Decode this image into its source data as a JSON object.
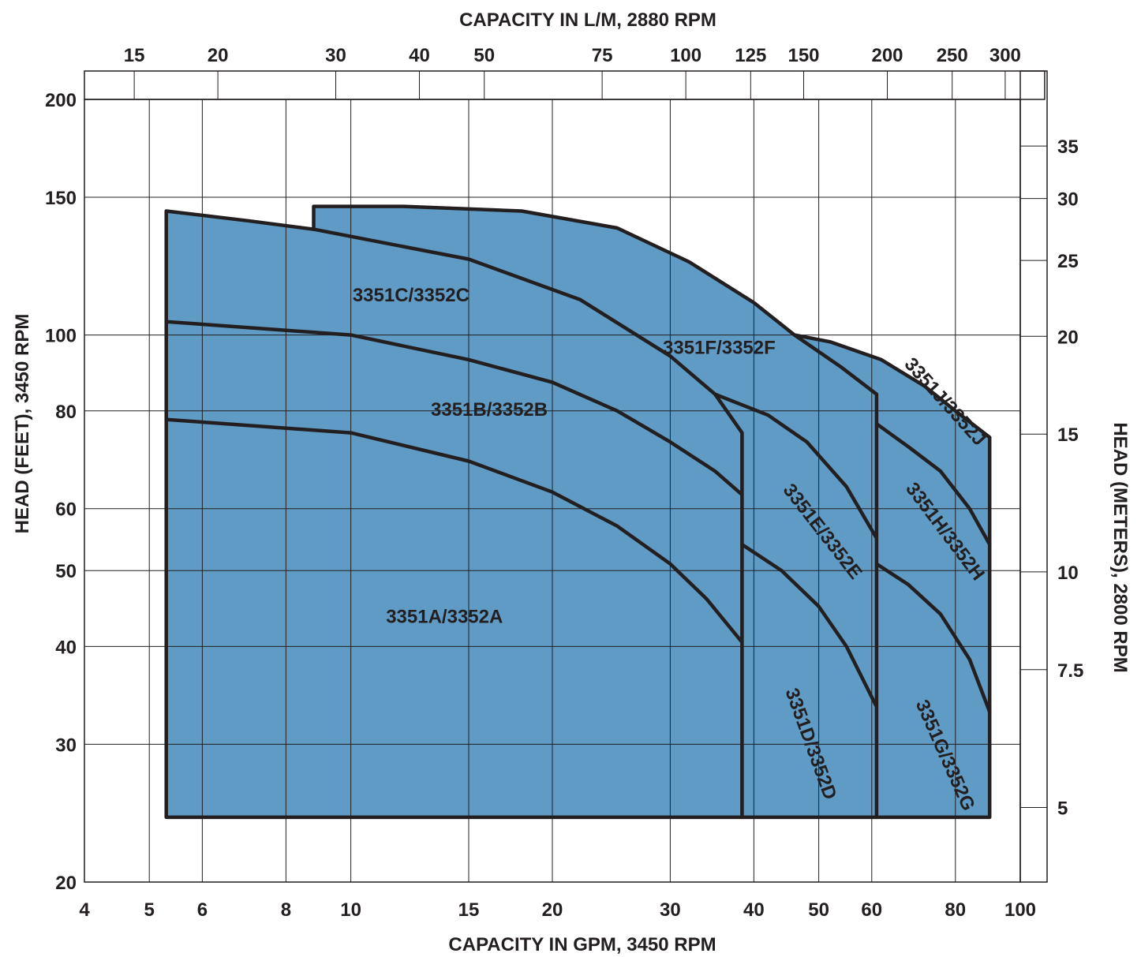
{
  "chart_data": {
    "type": "area",
    "top_axis_title": "CAPACITY IN L/M, 2880 RPM",
    "bottom_axis_title": "CAPACITY IN GPM, 3450 RPM",
    "left_axis_title": "HEAD (FEET), 3450 RPM",
    "right_axis_title": "HEAD (METERS), 2800 RPM",
    "x_scale": "log",
    "y_scale": "log",
    "xlim": [
      4,
      100
    ],
    "ylim": [
      20,
      200
    ],
    "x_ticks": [
      4,
      5,
      6,
      8,
      10,
      15,
      20,
      30,
      40,
      50,
      60,
      80,
      100
    ],
    "y_ticks": [
      20,
      30,
      40,
      50,
      60,
      80,
      100,
      150,
      200
    ],
    "top_ticks": [
      15,
      20,
      30,
      40,
      50,
      75,
      100,
      125,
      150,
      200,
      250,
      300
    ],
    "right_ticks": [
      5,
      7.5,
      10,
      15,
      20,
      25,
      30,
      35
    ],
    "grid": true,
    "fill_color": "#5f9bc5",
    "line_color": "#231f20",
    "regions": [
      {
        "label": "3351A/3352A",
        "at": [
          13.8,
          43.5
        ],
        "rotate": 0
      },
      {
        "label": "3351B/3352B",
        "at": [
          16.1,
          80
        ],
        "rotate": 0
      },
      {
        "label": "3351C/3352C",
        "at": [
          12.3,
          112
        ],
        "rotate": 0
      },
      {
        "label": "3351D/3352D",
        "at": [
          48.5,
          30
        ],
        "rotate": 70
      },
      {
        "label": "3351E/3352E",
        "at": [
          50.5,
          56
        ],
        "rotate": 52
      },
      {
        "label": "3351F/3352F",
        "at": [
          35.5,
          96
        ],
        "rotate": 0
      },
      {
        "label": "3351G/3352G",
        "at": [
          77,
          29
        ],
        "rotate": 66
      },
      {
        "label": "3351H/3352H",
        "at": [
          77,
          56
        ],
        "rotate": 53
      },
      {
        "label": "3351J/3352J",
        "at": [
          77,
          82
        ],
        "rotate": 48
      }
    ],
    "lines": [
      {
        "name": "outline-left-block",
        "points": [
          [
            5.3,
            24.2
          ],
          [
            5.3,
            144
          ],
          [
            7.0,
            140
          ],
          [
            8.8,
            136.5
          ],
          [
            15,
            125
          ],
          [
            22,
            111
          ],
          [
            30,
            94
          ],
          [
            35,
            84
          ],
          [
            38.4,
            75
          ],
          [
            38.4,
            24.2
          ],
          [
            5.3,
            24.2
          ]
        ]
      },
      {
        "name": "outline-upper-top",
        "points": [
          [
            8.8,
            136.5
          ],
          [
            8.8,
            146
          ],
          [
            12,
            146
          ],
          [
            18,
            144
          ],
          [
            25,
            137
          ],
          [
            32,
            124
          ],
          [
            40,
            110
          ],
          [
            46,
            100
          ],
          [
            54,
            91
          ],
          [
            61,
            84
          ],
          [
            61,
            24.2
          ],
          [
            38.4,
            24.2
          ]
        ]
      },
      {
        "name": "outline-right-block",
        "points": [
          [
            46,
            100
          ],
          [
            52,
            98
          ],
          [
            62,
            93
          ],
          [
            72,
            86
          ],
          [
            80,
            80
          ],
          [
            90,
            74
          ],
          [
            90,
            24.2
          ],
          [
            61,
            24.2
          ]
        ]
      },
      {
        "name": "curve-a",
        "points": [
          [
            5.3,
            78
          ],
          [
            10,
            75
          ],
          [
            15,
            69
          ],
          [
            20,
            63
          ],
          [
            25,
            57
          ],
          [
            30,
            51
          ],
          [
            34,
            46
          ],
          [
            38.4,
            40.5
          ]
        ]
      },
      {
        "name": "curve-b",
        "points": [
          [
            5.3,
            104
          ],
          [
            10,
            100
          ],
          [
            15,
            93
          ],
          [
            20,
            87
          ],
          [
            25,
            80
          ],
          [
            30,
            73
          ],
          [
            35,
            67
          ],
          [
            38.4,
            62.5
          ]
        ]
      },
      {
        "name": "curve-e",
        "points": [
          [
            35,
            84
          ],
          [
            42,
            79
          ],
          [
            48,
            73
          ],
          [
            55,
            64
          ],
          [
            61,
            55
          ]
        ]
      },
      {
        "name": "curve-d",
        "points": [
          [
            38.4,
            54
          ],
          [
            44,
            50
          ],
          [
            50,
            45
          ],
          [
            55,
            40
          ],
          [
            61,
            33.5
          ]
        ]
      },
      {
        "name": "curve-j",
        "points": [
          [
            61,
            77
          ],
          [
            68,
            72
          ],
          [
            76,
            67
          ],
          [
            84,
            60
          ],
          [
            90,
            54
          ]
        ]
      },
      {
        "name": "curve-h",
        "points": [
          [
            61,
            51
          ],
          [
            68,
            48
          ],
          [
            76,
            44
          ],
          [
            84,
            38.5
          ],
          [
            90,
            33
          ]
        ]
      }
    ]
  }
}
